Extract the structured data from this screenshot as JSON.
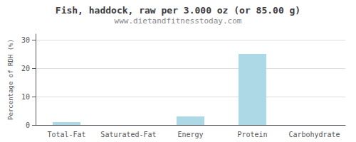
{
  "chart_data": {
    "type": "bar",
    "title": "Fish, haddock, raw per 3.000 oz (or 85.00 g)",
    "subtitle": "www.dietandfitnesstoday.com",
    "categories": [
      "Total-Fat",
      "Saturated-Fat",
      "Energy",
      "Protein",
      "Carbohydrate"
    ],
    "values": [
      1.0,
      0.0,
      3.0,
      25.0,
      0.0
    ],
    "color": "#add8e6",
    "ylabel": "Percentage of RDH (%)",
    "ylim": [
      0,
      32
    ],
    "yticks": [
      0,
      10,
      20,
      30
    ],
    "grid": true
  }
}
